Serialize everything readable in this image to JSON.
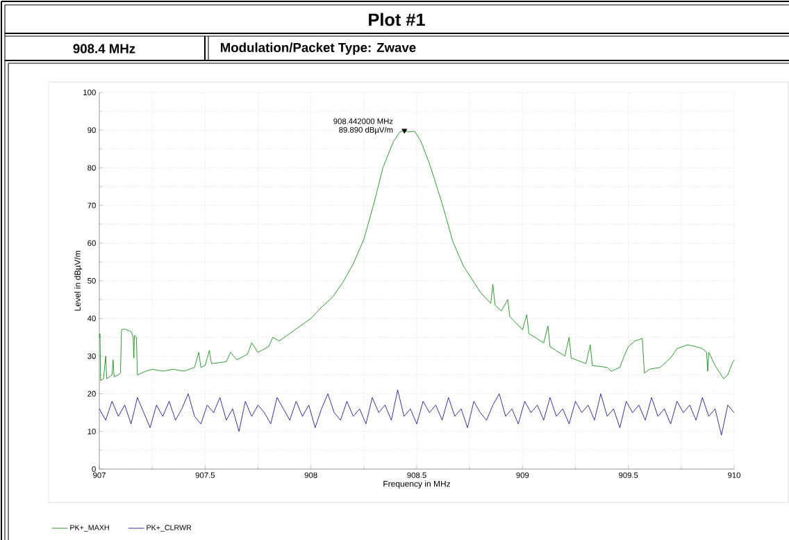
{
  "chart_data": {
    "type": "line",
    "title": "Plot #1",
    "annotations": [
      "908.4 MHz",
      "Modulation/Packet Type: Zwave",
      {
        "text": "908.442000 MHz",
        "x": 908.442,
        "y": 89.89
      },
      {
        "text": "89.890 dBµV/m",
        "x": 908.442,
        "y": 89.89
      }
    ],
    "xlabel": "Frequency in MHz",
    "ylabel": "Level in dBµV/m",
    "xlim": [
      907,
      910
    ],
    "xticks": [
      907,
      907.5,
      908,
      908.5,
      909,
      909.5,
      910
    ],
    "ylim": [
      0,
      100
    ],
    "yticks": [
      0,
      10,
      20,
      30,
      40,
      50,
      60,
      70,
      80,
      90,
      100
    ],
    "grid": true,
    "legend": "bottom left",
    "series": [
      {
        "name": "PK+_MAXH",
        "color": "#008000",
        "x": [
          907.0,
          907.003,
          907.006,
          907.02,
          907.03,
          907.035,
          907.06,
          907.065,
          907.07,
          907.09,
          907.1,
          907.105,
          907.12,
          907.15,
          907.16,
          907.163,
          907.166,
          907.175,
          907.18,
          907.2,
          907.22,
          907.25,
          907.3,
          907.35,
          907.4,
          907.45,
          907.47,
          907.48,
          907.5,
          907.52,
          907.53,
          907.6,
          907.62,
          907.65,
          907.7,
          907.72,
          907.75,
          907.8,
          907.82,
          907.85,
          907.9,
          907.95,
          908.0,
          908.05,
          908.1,
          908.15,
          908.2,
          908.25,
          908.3,
          908.34,
          908.39,
          908.42,
          908.442,
          908.46,
          908.49,
          908.52,
          908.565,
          908.62,
          908.67,
          908.72,
          908.76,
          908.8,
          908.85,
          908.86,
          908.87,
          908.9,
          908.93,
          908.94,
          909.0,
          909.02,
          909.03,
          909.1,
          909.12,
          909.13,
          909.2,
          909.22,
          909.23,
          909.3,
          909.32,
          909.33,
          909.4,
          909.42,
          909.46,
          909.48,
          909.5,
          909.53,
          909.566,
          909.576,
          909.6,
          909.65,
          909.7,
          909.73,
          909.78,
          909.82,
          909.85,
          909.87,
          909.875,
          909.88,
          909.91,
          909.95,
          909.97,
          909.99,
          910.0
        ],
        "values": [
          35,
          36,
          23.5,
          24,
          30,
          24,
          25,
          29,
          24.5,
          25,
          25.5,
          37,
          37.2,
          36.5,
          35,
          29.5,
          35.5,
          35,
          25,
          25.5,
          26,
          26.5,
          26,
          26.5,
          26,
          27,
          31,
          27,
          27.5,
          31.5,
          28,
          28.5,
          31,
          29,
          30.5,
          33.5,
          31,
          32.5,
          35,
          34,
          36,
          38,
          40,
          43,
          45.5,
          49.5,
          54.5,
          61,
          71,
          80,
          87,
          89.5,
          89.89,
          89.5,
          89.7,
          87,
          80.3,
          70.5,
          60.5,
          54,
          50.5,
          47,
          44,
          49,
          43.5,
          42,
          45,
          40.5,
          37,
          41,
          36,
          33.5,
          38,
          32.5,
          30,
          35,
          29.5,
          28,
          33,
          27.5,
          27,
          26,
          27,
          30,
          32.5,
          34,
          34.7,
          25.5,
          26.5,
          27,
          29.5,
          32,
          33,
          32.5,
          32,
          31,
          26,
          31,
          27.5,
          24,
          25,
          28,
          29
        ]
      },
      {
        "name": "PK+_CLRWR",
        "color": "#000080",
        "x": [
          907,
          907.03,
          907.06,
          907.09,
          907.12,
          907.15,
          907.18,
          907.21,
          907.24,
          907.27,
          907.3,
          907.33,
          907.36,
          907.39,
          907.42,
          907.45,
          907.48,
          907.51,
          907.54,
          907.57,
          907.6,
          907.63,
          907.66,
          907.69,
          907.72,
          907.75,
          907.78,
          907.81,
          907.84,
          907.87,
          907.9,
          907.93,
          907.96,
          907.99,
          908.02,
          908.05,
          908.08,
          908.11,
          908.14,
          908.17,
          908.2,
          908.23,
          908.26,
          908.29,
          908.32,
          908.35,
          908.38,
          908.41,
          908.44,
          908.47,
          908.5,
          908.53,
          908.56,
          908.59,
          908.62,
          908.65,
          908.68,
          908.71,
          908.74,
          908.77,
          908.8,
          908.83,
          908.86,
          908.89,
          908.92,
          908.95,
          908.98,
          909.01,
          909.04,
          909.07,
          909.1,
          909.13,
          909.16,
          909.19,
          909.22,
          909.25,
          909.28,
          909.31,
          909.34,
          909.37,
          909.4,
          909.43,
          909.46,
          909.49,
          909.52,
          909.55,
          909.58,
          909.61,
          909.64,
          909.67,
          909.7,
          909.73,
          909.76,
          909.79,
          909.82,
          909.85,
          909.88,
          909.91,
          909.94,
          909.97,
          910
        ],
        "values": [
          16,
          13,
          18,
          14,
          17,
          12,
          19,
          15,
          11,
          17,
          14,
          18,
          13,
          16,
          20,
          14,
          12,
          17,
          15,
          19,
          13,
          16,
          10,
          18,
          14,
          17,
          15,
          12,
          19,
          16,
          13,
          18,
          14,
          17,
          11,
          16,
          20,
          15,
          13,
          18,
          14,
          16,
          12,
          19,
          15,
          17,
          13,
          21,
          14,
          16,
          12,
          18,
          15,
          17,
          13,
          19,
          14,
          16,
          11,
          18,
          15,
          13,
          17,
          20,
          14,
          16,
          12,
          18,
          15,
          17,
          13,
          19,
          14,
          16,
          12,
          18,
          15,
          17,
          13,
          20,
          14,
          16,
          11,
          18,
          15,
          17,
          13,
          19,
          14,
          16,
          12,
          18,
          15,
          17,
          13,
          19,
          14,
          16,
          9,
          17,
          15
        ]
      },
      {
        "type": "scatter",
        "color": "#000000",
        "marker": "triangle",
        "x": [
          908.442
        ],
        "values": [
          89.89
        ]
      }
    ]
  }
}
